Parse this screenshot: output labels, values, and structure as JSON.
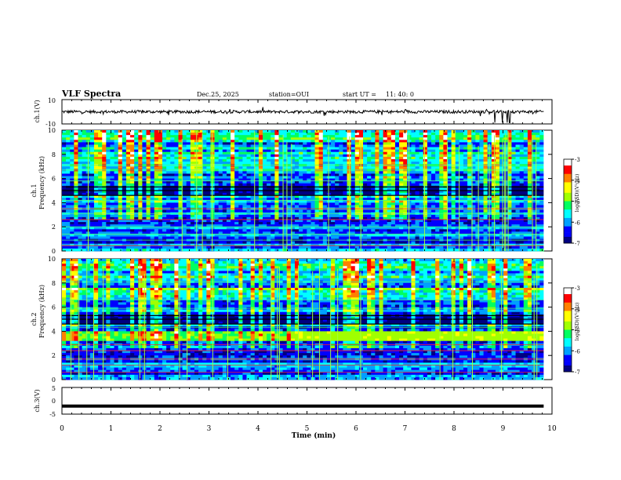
{
  "header": {
    "title": "VLF Spectra",
    "date": "Dec.25, 2025",
    "station": "station=OUI",
    "start_label": "start  UT =",
    "start_time": "11: 40: 0"
  },
  "chart_data": [
    {
      "id": "ch1-waveform",
      "type": "line",
      "ylabel": "ch.1(V)",
      "ylim": [
        -10,
        10
      ],
      "yticks": [
        "10",
        "-10"
      ],
      "xlim": [
        0,
        10
      ],
      "description_series": "noisy waveform centred near 0 V with spikes around 8.8-9.2 min"
    },
    {
      "id": "ch1-spectrogram",
      "type": "heatmap",
      "ylabel_top": "ch.1",
      "ylabel": "Frequency (kHz)",
      "ylim": [
        0,
        10
      ],
      "yticks": [
        "0",
        "2",
        "4",
        "6",
        "8",
        "10"
      ],
      "xlim": [
        0,
        10
      ],
      "colorbar": {
        "label": "log(PSD)(V²/Hz)",
        "range": [
          -7,
          -3
        ],
        "ticks": [
          "-3",
          "-4",
          "-5",
          "-6",
          "-7"
        ],
        "colors": [
          "#000080",
          "#0000ff",
          "#00a0ff",
          "#00ffff",
          "#00ff60",
          "#a0ff00",
          "#ffff00",
          "#ff8000",
          "#ff0000",
          "#ffffff"
        ]
      }
    },
    {
      "id": "ch2-spectrogram",
      "type": "heatmap",
      "ylabel_top": "ch.2",
      "ylabel": "Frequency (kHz)",
      "ylim": [
        0,
        10
      ],
      "yticks": [
        "0",
        "2",
        "4",
        "6",
        "8",
        "10"
      ],
      "xlim": [
        0,
        10
      ],
      "colorbar": {
        "label": "log(PSD)(V²/Hz)",
        "range": [
          -7,
          -3
        ],
        "ticks": [
          "-3",
          "-4",
          "-5",
          "-6",
          "-7"
        ]
      }
    },
    {
      "id": "ch3-waveform",
      "type": "line",
      "ylabel": "ch.3(V)",
      "ylim": [
        -5,
        5
      ],
      "yticks": [
        "5",
        "0",
        "-5"
      ],
      "xlim": [
        0,
        10
      ],
      "value": -2,
      "description_series": "flat thick line at about -2 V"
    }
  ],
  "xaxis": {
    "label": "Time (min)",
    "ticks": [
      "0",
      "1",
      "2",
      "3",
      "4",
      "5",
      "6",
      "7",
      "8",
      "9",
      "10"
    ],
    "xlim": [
      0,
      10
    ]
  }
}
